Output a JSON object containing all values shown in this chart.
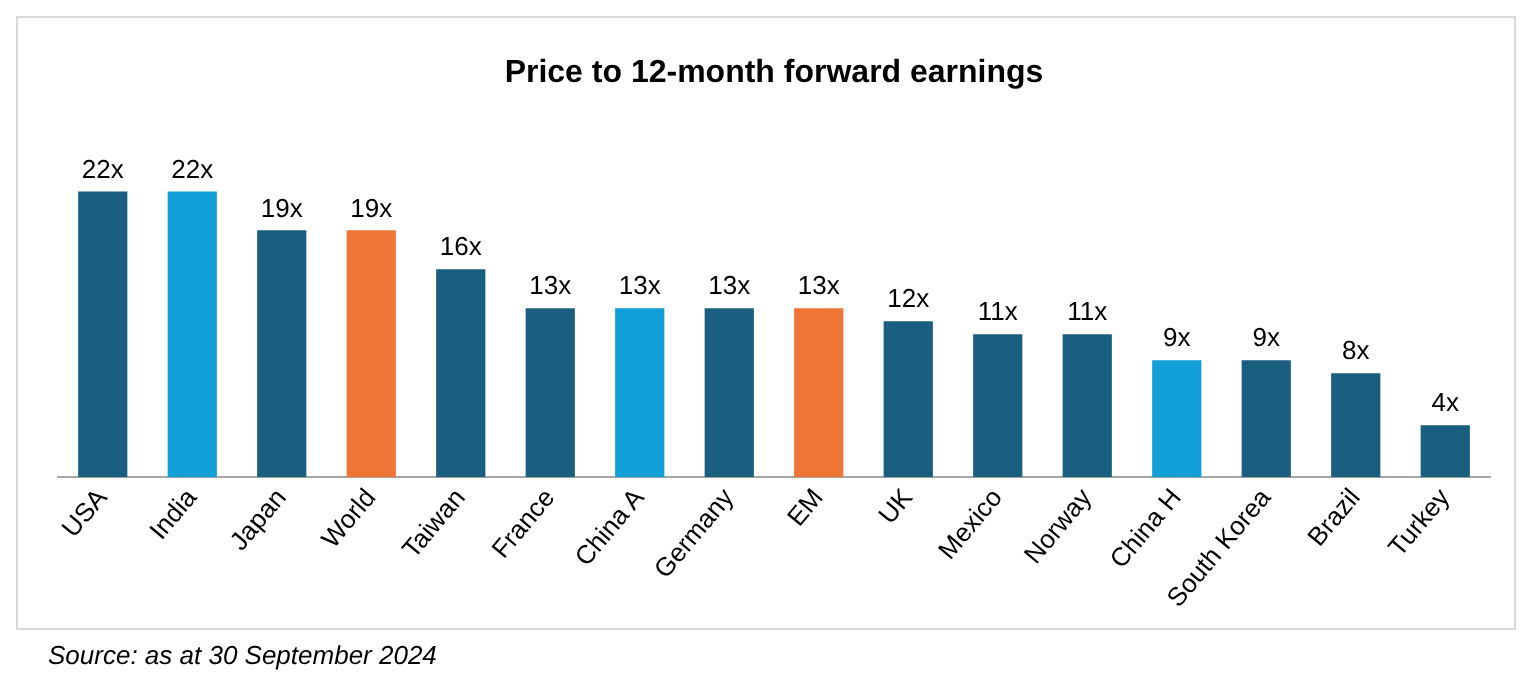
{
  "chart_data": {
    "type": "bar",
    "title": "Price to 12-month forward earnings",
    "categories": [
      "USA",
      "India",
      "Japan",
      "World",
      "Taiwan",
      "France",
      "China A",
      "Germany",
      "EM",
      "UK",
      "Mexico",
      "Norway",
      "China H",
      "South Korea",
      "Brazil",
      "Turkey"
    ],
    "values": [
      22,
      22,
      19,
      19,
      16,
      13,
      13,
      13,
      13,
      12,
      11,
      11,
      9,
      9,
      8,
      4
    ],
    "value_labels": [
      "22x",
      "22x",
      "19x",
      "19x",
      "16x",
      "13x",
      "13x",
      "13x",
      "13x",
      "12x",
      "11x",
      "11x",
      "9x",
      "9x",
      "8x",
      "4x"
    ],
    "colors": [
      "#1a5f80",
      "#119fd8",
      "#1a5f80",
      "#ed7535",
      "#1a5f80",
      "#1a5f80",
      "#119fd8",
      "#1a5f80",
      "#ed7535",
      "#1a5f80",
      "#1a5f80",
      "#1a5f80",
      "#119fd8",
      "#1a5f80",
      "#1a5f80",
      "#1a5f80"
    ],
    "legend": false,
    "grid": false,
    "annotations": [
      "Source: as at 30 September 2024"
    ]
  }
}
